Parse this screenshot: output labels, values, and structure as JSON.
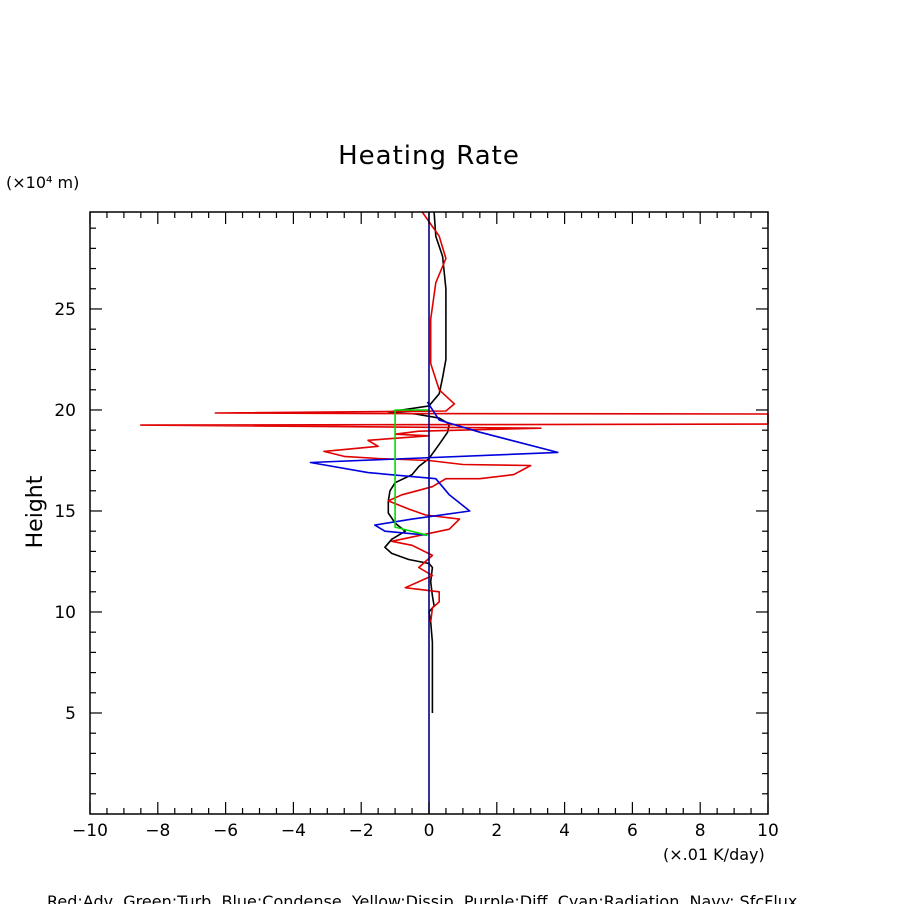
{
  "chart_data": {
    "type": "line",
    "title": "Heating Rate",
    "ylabel": "Height",
    "yunit": "(×10⁴ m)",
    "xunit": "(×.01 K/day)",
    "xlim": [
      -10,
      10
    ],
    "ylim": [
      0,
      29.8
    ],
    "xticks": [
      -10,
      -8,
      -6,
      -4,
      -2,
      0,
      2,
      4,
      6,
      8,
      10
    ],
    "yticks": [
      5,
      10,
      15,
      20,
      25
    ],
    "xtick_labels": [
      "−10",
      "−8",
      "−6",
      "−4",
      "−2",
      "0",
      "2",
      "4",
      "6",
      "8",
      "10"
    ],
    "ytick_labels": [
      "5",
      "10",
      "15",
      "20",
      "25"
    ],
    "legend_text": "Red:Adv  Green:Turb  Blue:Condense  Yellow:Dissip  Purple:Diff  Cyan:Radiation  Navy: SfcFlux",
    "series": [
      {
        "color": "#000000",
        "points": [
          [
            0.1,
            5
          ],
          [
            0.1,
            7
          ],
          [
            0.1,
            8.5
          ],
          [
            0.05,
            9.5
          ],
          [
            0.0,
            10.0
          ],
          [
            0.15,
            10.3
          ],
          [
            0.1,
            10.8
          ],
          [
            0.05,
            11.5
          ],
          [
            0.1,
            12.2
          ],
          [
            0.0,
            12.4
          ],
          [
            -0.6,
            12.6
          ],
          [
            -1.1,
            12.9
          ],
          [
            -1.3,
            13.2
          ],
          [
            -1.1,
            13.6
          ],
          [
            -0.7,
            14.0
          ],
          [
            -1.0,
            14.4
          ],
          [
            -1.2,
            14.9
          ],
          [
            -1.2,
            15.5
          ],
          [
            -1.15,
            16.0
          ],
          [
            -1.0,
            16.4
          ],
          [
            -0.5,
            16.8
          ],
          [
            -0.3,
            17.2
          ],
          [
            0.0,
            17.6
          ],
          [
            0.3,
            18.3
          ],
          [
            0.55,
            18.9
          ],
          [
            0.6,
            19.3
          ],
          [
            0.3,
            19.6
          ],
          [
            -0.4,
            19.8
          ],
          [
            -1.2,
            19.9
          ],
          [
            0.0,
            20.2
          ],
          [
            0.3,
            20.8
          ],
          [
            0.4,
            21.6
          ],
          [
            0.5,
            22.5
          ],
          [
            0.5,
            24.0
          ],
          [
            0.5,
            26.0
          ],
          [
            0.4,
            27.6
          ],
          [
            0.2,
            28.6
          ],
          [
            0.15,
            29.8
          ]
        ]
      },
      {
        "color": "#e00000",
        "points": [
          [
            -0.2,
            29.8
          ],
          [
            0.3,
            28.6
          ],
          [
            0.5,
            27.5
          ],
          [
            0.2,
            26.3
          ],
          [
            0.05,
            24.5
          ],
          [
            0.05,
            22.3
          ],
          [
            0.3,
            21.0
          ],
          [
            0.75,
            20.3
          ],
          [
            0.5,
            19.95
          ],
          [
            -6.3,
            19.85
          ],
          [
            -1.0,
            19.82
          ],
          [
            10,
            19.8
          ],
          [
            10,
            19.3
          ],
          [
            -8.5,
            19.25
          ],
          [
            3.3,
            19.1
          ],
          [
            -0.3,
            18.95
          ],
          [
            -1.0,
            18.8
          ],
          [
            0.0,
            18.72
          ],
          [
            -1.8,
            18.5
          ],
          [
            -1.5,
            18.2
          ],
          [
            -3.1,
            17.95
          ],
          [
            -2.5,
            17.7
          ],
          [
            -1.5,
            17.6
          ],
          [
            0.0,
            17.5
          ],
          [
            1.0,
            17.3
          ],
          [
            3.0,
            17.25
          ],
          [
            2.5,
            16.8
          ],
          [
            1.5,
            16.6
          ],
          [
            0.5,
            16.6
          ],
          [
            0.1,
            16.2
          ],
          [
            -0.8,
            15.8
          ],
          [
            -1.2,
            15.5
          ],
          [
            -0.6,
            15.1
          ],
          [
            -0.1,
            14.8
          ],
          [
            0.9,
            14.6
          ],
          [
            0.6,
            14.1
          ],
          [
            -1.1,
            13.5
          ],
          [
            -0.5,
            13.3
          ],
          [
            0.1,
            12.8
          ],
          [
            -0.3,
            12.2
          ],
          [
            0.1,
            11.8
          ],
          [
            -0.7,
            11.2
          ],
          [
            0.3,
            11.0
          ],
          [
            0.3,
            10.5
          ],
          [
            0.1,
            10.2
          ],
          [
            0.05,
            9.5
          ]
        ]
      },
      {
        "color": "#0000dd",
        "points": [
          [
            -0.05,
            20.4
          ],
          [
            0.3,
            19.5
          ],
          [
            1.5,
            18.9
          ],
          [
            3.8,
            17.9
          ],
          [
            -3.5,
            17.4
          ],
          [
            -1.8,
            16.9
          ],
          [
            0.2,
            16.6
          ],
          [
            0.6,
            15.8
          ],
          [
            1.2,
            15.0
          ],
          [
            -0.5,
            14.6
          ],
          [
            -1.6,
            14.3
          ],
          [
            -1.3,
            14.0
          ],
          [
            -0.05,
            13.8
          ]
        ]
      },
      {
        "color": "#00dd00",
        "points": [
          [
            -1.0,
            20.0
          ],
          [
            0.0,
            20.0
          ],
          [
            -1.0,
            20.0
          ],
          [
            -1.0,
            14.2
          ],
          [
            -0.05,
            13.8
          ]
        ]
      },
      {
        "color": "#000080",
        "points": [
          [
            0,
            0
          ],
          [
            0,
            29.8
          ]
        ]
      }
    ]
  }
}
